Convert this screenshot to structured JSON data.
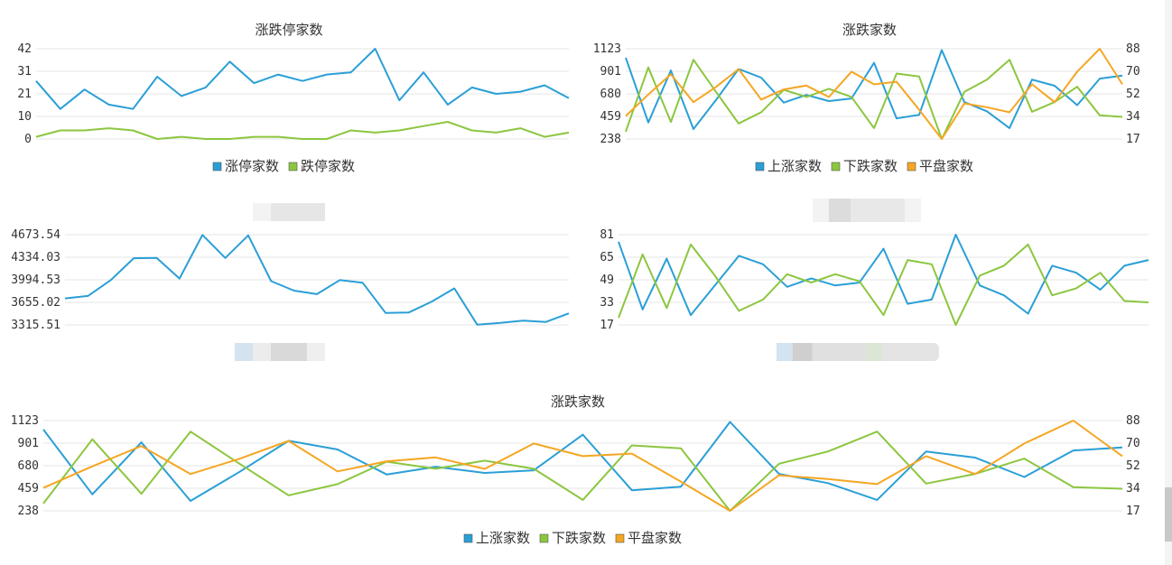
{
  "chart_data": [
    {
      "id": "c1",
      "type": "line",
      "title": "涨跌停家数",
      "ylim": [
        0,
        42
      ],
      "yticks": [
        "42",
        "31",
        "21",
        "10",
        "0"
      ],
      "grid": true,
      "legend": "bottom",
      "series": [
        {
          "name": "涨停家数",
          "color": "#2a9fd6",
          "values": [
            27,
            14,
            23,
            16,
            14,
            29,
            20,
            24,
            36,
            26,
            30,
            27,
            30,
            31,
            42,
            18,
            31,
            16,
            24,
            21,
            22,
            25,
            19
          ]
        },
        {
          "name": "跌停家数",
          "color": "#8cc63f",
          "values": [
            1,
            4,
            4,
            5,
            4,
            0,
            1,
            0,
            0,
            1,
            1,
            0,
            0,
            4,
            3,
            4,
            6,
            8,
            4,
            3,
            5,
            1,
            3
          ]
        }
      ]
    },
    {
      "id": "c2",
      "type": "line",
      "title": "涨跌家数",
      "ylim": [
        238,
        1123
      ],
      "y2lim": [
        17,
        88
      ],
      "yticks": [
        "1123",
        "901",
        "680",
        "459",
        "238"
      ],
      "y2ticks": [
        "88",
        "70",
        "52",
        "34",
        "17"
      ],
      "grid": true,
      "legend": "bottom",
      "series": [
        {
          "name": "上涨家数",
          "color": "#2a9fd6",
          "axis": "left",
          "values": [
            1035,
            400,
            910,
            335,
            620,
            925,
            840,
            595,
            670,
            610,
            635,
            985,
            440,
            475,
            1110,
            600,
            510,
            345,
            820,
            760,
            570,
            830,
            860
          ]
        },
        {
          "name": "下跌家数",
          "color": "#8cc63f",
          "axis": "left",
          "values": [
            310,
            940,
            405,
            1015,
            700,
            390,
            500,
            720,
            650,
            730,
            650,
            345,
            880,
            850,
            238,
            700,
            820,
            1015,
            505,
            600,
            750,
            470,
            455
          ]
        },
        {
          "name": "平盘家数",
          "color": "#f5a623",
          "axis": "right",
          "values": [
            35,
            52,
            68,
            46,
            58,
            72,
            48,
            56,
            59,
            50,
            70,
            60,
            62,
            40,
            17,
            45,
            42,
            38,
            60,
            46,
            70,
            88,
            60
          ]
        }
      ]
    },
    {
      "id": "c3",
      "type": "line",
      "title": "",
      "ylim": [
        3315.51,
        4673.54
      ],
      "yticks": [
        "4673.54",
        "4334.03",
        "3994.53",
        "3655.02",
        "3315.51"
      ],
      "grid": true,
      "legend": "bottom",
      "series": [
        {
          "name": "",
          "color": "#2a9fd6",
          "values": [
            3715,
            3752,
            3990,
            4319,
            4325,
            4014,
            4670,
            4323,
            4663,
            3974,
            3832,
            3778,
            3990,
            3950,
            3495,
            3502,
            3663,
            3866,
            3320,
            3345,
            3380,
            3360,
            3490
          ]
        }
      ]
    },
    {
      "id": "c4",
      "type": "line",
      "title": "",
      "ylim": [
        17,
        81
      ],
      "yticks": [
        "81",
        "65",
        "49",
        "33",
        "17"
      ],
      "grid": true,
      "legend": "bottom",
      "series": [
        {
          "name": "",
          "color": "#2a9fd6",
          "values": [
            76,
            28,
            64,
            24,
            45,
            66,
            60,
            44,
            50,
            45,
            47,
            71,
            32,
            35,
            81,
            45,
            38,
            25,
            59,
            54,
            42,
            59,
            63
          ]
        },
        {
          "name": "",
          "color": "#8cc63f",
          "values": [
            22,
            67,
            29,
            74,
            52,
            27,
            35,
            53,
            47,
            53,
            48,
            24,
            63,
            60,
            17,
            52,
            59,
            74,
            38,
            43,
            54,
            34,
            33
          ]
        }
      ]
    },
    {
      "id": "c5",
      "type": "line",
      "title": "涨跌家数",
      "ylim": [
        238,
        1123
      ],
      "y2lim": [
        17,
        88
      ],
      "yticks": [
        "1123",
        "901",
        "680",
        "459",
        "238"
      ],
      "y2ticks": [
        "88",
        "70",
        "52",
        "34",
        "17"
      ],
      "grid": true,
      "legend": "bottom",
      "series": [
        {
          "name": "上涨家数",
          "color": "#2a9fd6",
          "axis": "left",
          "values": [
            1035,
            400,
            910,
            335,
            620,
            925,
            840,
            595,
            670,
            610,
            635,
            985,
            440,
            475,
            1110,
            600,
            510,
            345,
            820,
            760,
            570,
            830,
            860
          ]
        },
        {
          "name": "下跌家数",
          "color": "#8cc63f",
          "axis": "left",
          "values": [
            310,
            940,
            405,
            1015,
            700,
            390,
            500,
            720,
            650,
            730,
            650,
            345,
            880,
            850,
            238,
            700,
            820,
            1015,
            505,
            600,
            750,
            470,
            455
          ]
        },
        {
          "name": "平盘家数",
          "color": "#f5a623",
          "axis": "right",
          "values": [
            35,
            52,
            68,
            46,
            58,
            72,
            48,
            56,
            59,
            50,
            70,
            60,
            62,
            40,
            17,
            45,
            42,
            38,
            60,
            46,
            70,
            88,
            60
          ]
        }
      ]
    }
  ]
}
